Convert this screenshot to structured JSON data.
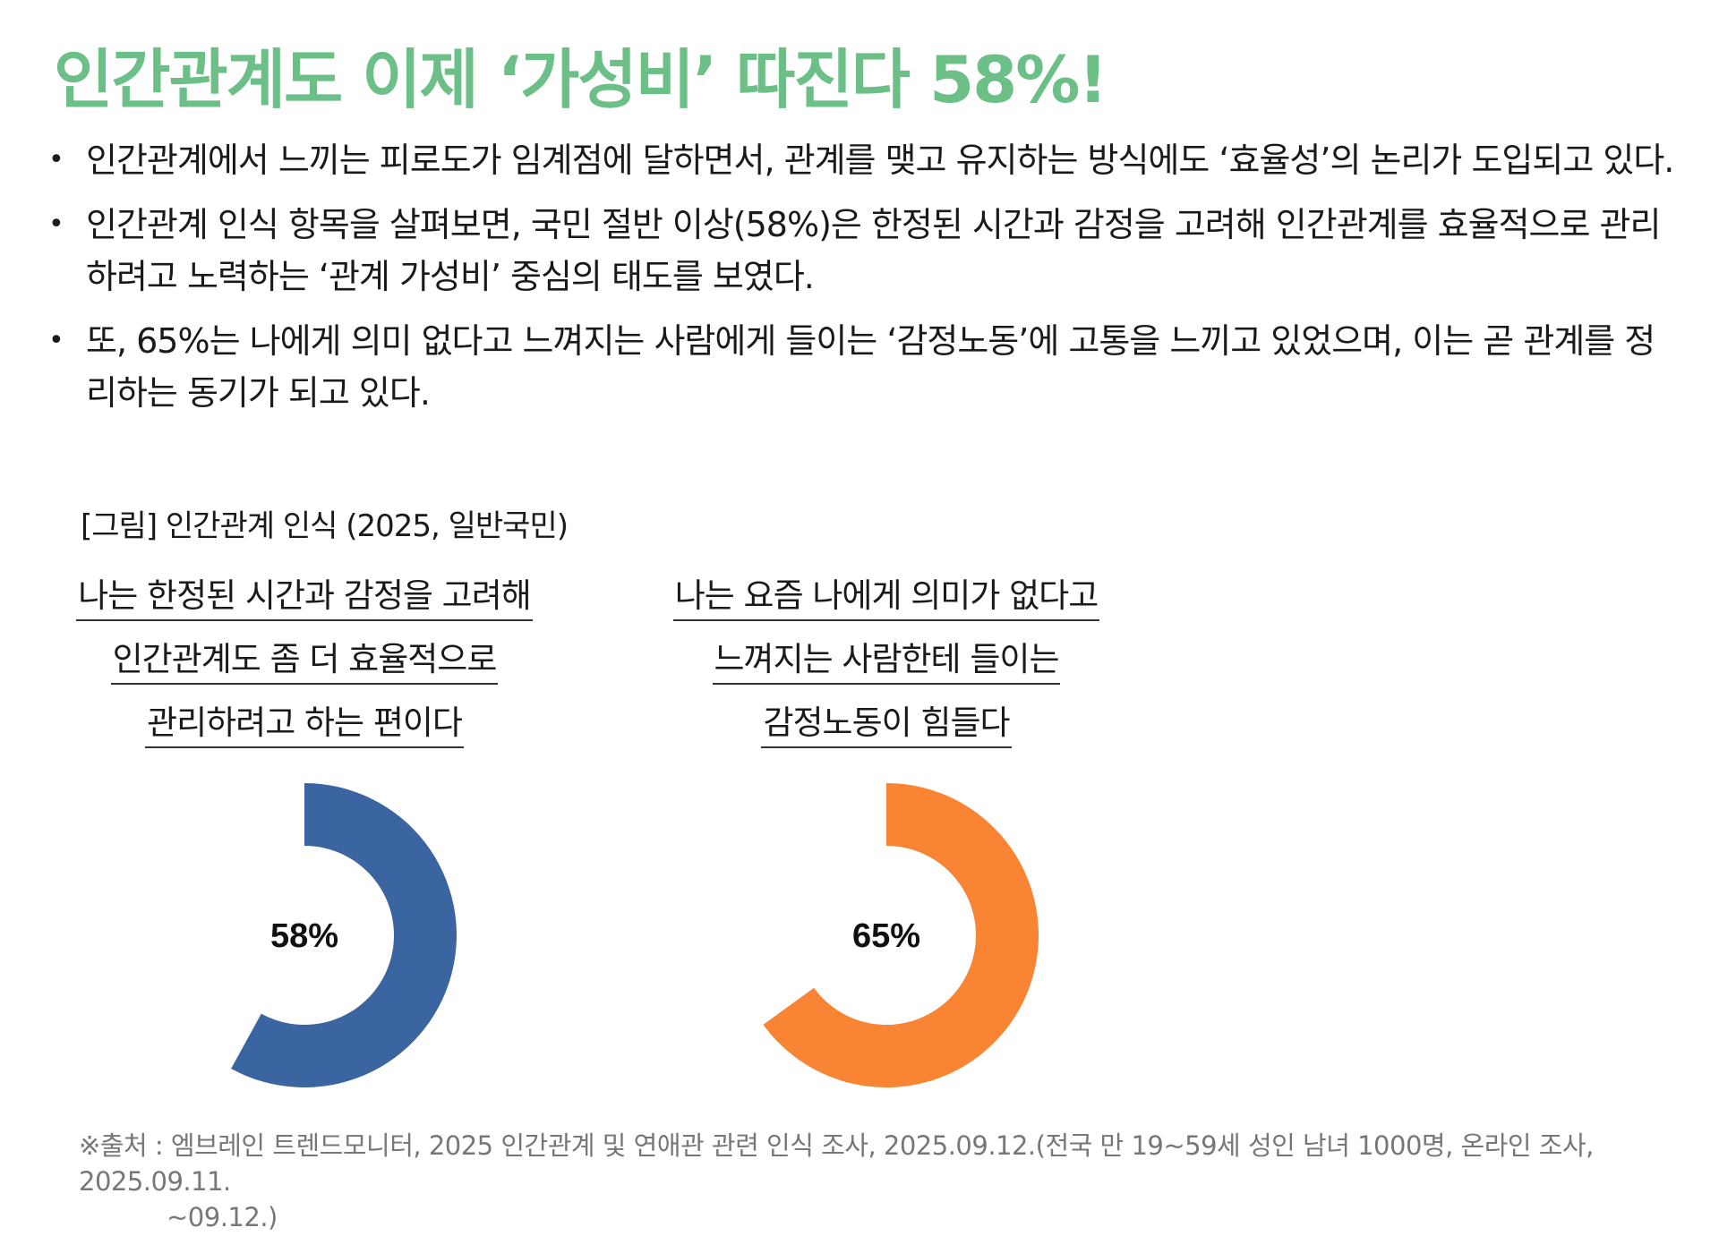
{
  "title": "인간관계도 이제 ‘가성비’ 따진다 58%!",
  "bullets": [
    {
      "marker": "•",
      "text": "인간관계에서 느끼는 피로도가 임계점에 달하면서, 관계를 맺고 유지하는 방식에도 ‘효율성’의 논리가 도입되고 있다."
    },
    {
      "marker": "•",
      "text": "인간관계 인식 항목을 살펴보면, 국민 절반 이상(58%)은 한정된 시간과 감정을 고려해 인간관계를 효율적으로 관리하려고 노력하는 ‘관계 가성비’ 중심의 태도를 보였다."
    },
    {
      "marker": "•",
      "text": "또, 65%는 나에게 의미 없다고 느껴지는 사람에게 들이는 ‘감정노동’에 고통을 느끼고 있었으며, 이는 곧 관계를 정리하는 동기가 되고 있다."
    }
  ],
  "figure_caption": "[그림] 인간관계 인식 (2025, 일반국민)",
  "chart_data": [
    {
      "type": "pie",
      "label_lines": [
        "나는 한정된 시간과 감정을 고려해",
        "인간관계도 좀 더 효율적으로",
        "관리하려고 하는 편이다"
      ],
      "value": 58,
      "value_label": "58%",
      "color": "#3a65a0",
      "track_color": "#ffffff",
      "start": "top",
      "direction": "clockwise"
    },
    {
      "type": "pie",
      "label_lines": [
        "나는 요즘 나에게 의미가 없다고",
        "느껴지는 사람한테 들이는",
        "감정노동이 힘들다"
      ],
      "value": 65,
      "value_label": "65%",
      "color": "#f88434",
      "track_color": "#ffffff",
      "start": "top",
      "direction": "clockwise"
    }
  ],
  "source": {
    "line1": "※출처 : 엠브레인 트렌드모니터, 2025 인간관계 및 연애관 관련 인식 조사, 2025.09.12.(전국 만 19~59세 성인 남녀 1000명, 온라인 조사, 2025.09.11.",
    "line2": "~09.12.)"
  }
}
